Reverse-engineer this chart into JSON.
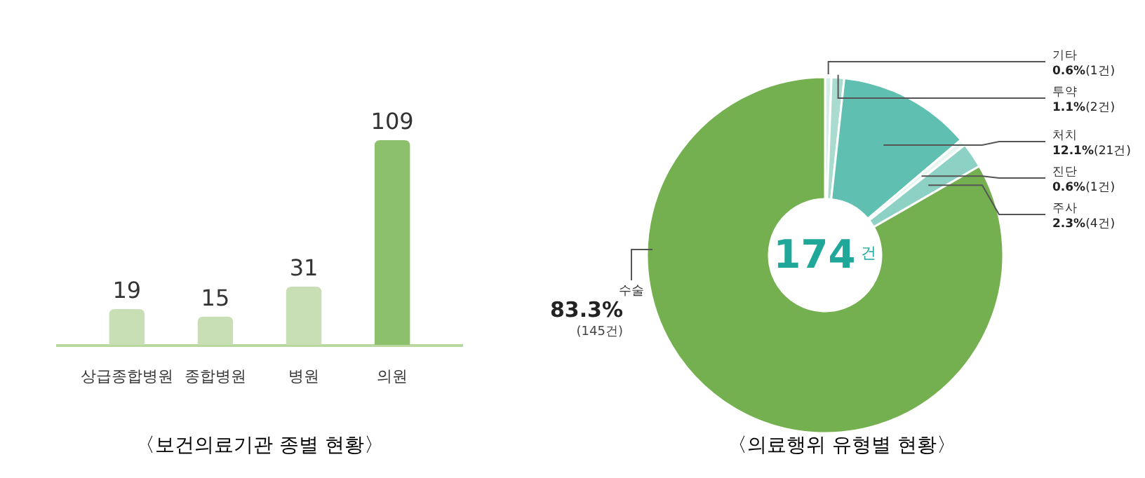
{
  "chart_data": [
    {
      "type": "bar",
      "title": "〈보건의료기관 종별 현황〉",
      "categories": [
        "상급종합병원",
        "종합병원",
        "병원",
        "의원"
      ],
      "values": [
        19,
        15,
        31,
        109
      ],
      "colors": [
        "#c8deb4",
        "#c8deb4",
        "#c8deb4",
        "#8cc06c"
      ],
      "data_labels": true
    },
    {
      "type": "donut",
      "title": "〈의료행위 유형별 현황〉",
      "categories": [
        "기타",
        "투약",
        "처치",
        "진단",
        "주사",
        "수술"
      ],
      "values": [
        1,
        2,
        21,
        1,
        4,
        145
      ],
      "colors": [
        "#d6ede6",
        "#a9dbcf",
        "#5fbfb1",
        "#e9f5f1",
        "#8dd1c5",
        "#74b04f"
      ],
      "value_labels": [
        "0.6%(1건)",
        "1.1%(2건)",
        "12.1%(21건)",
        "0.6%(1건)",
        "2.3%(4건)",
        "83.3%(145건)"
      ],
      "annotations": [
        "174$^{건}$"
      ]
    }
  ]
}
